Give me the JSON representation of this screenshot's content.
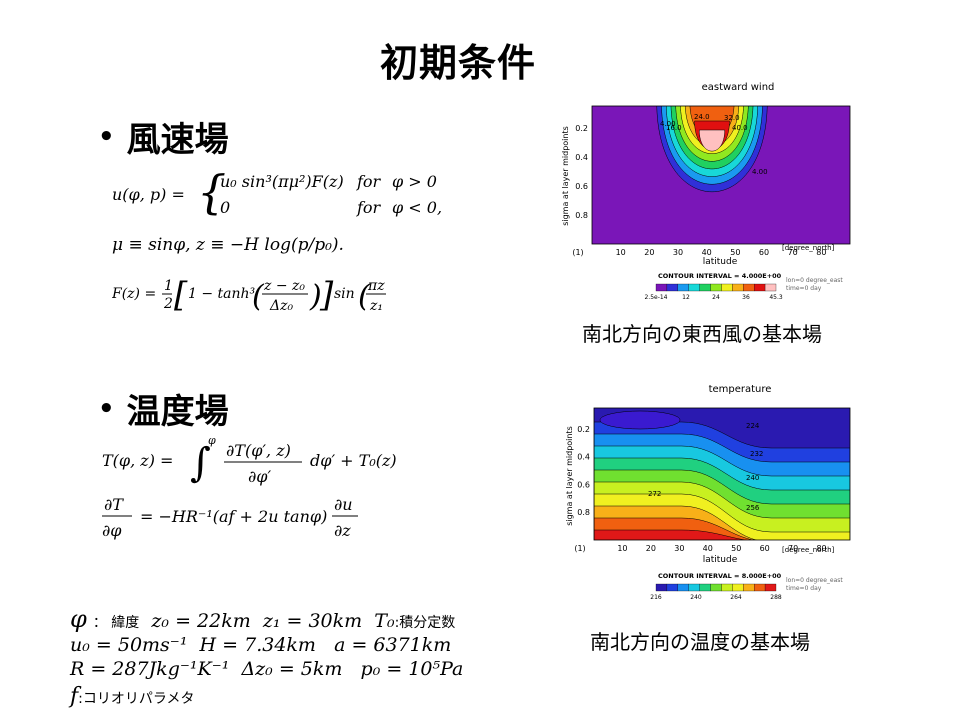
{
  "slide": {
    "title": "初期条件",
    "bullet_wind": "風速場",
    "bullet_temp": "温度場",
    "caption_wind": "南北方向の東西風の基本場",
    "caption_temp": "南北方向の温度の基本場"
  },
  "equations": {
    "wind": [
      "u(φ, p) = { u₀ sin³(πμ²)F(z)    for φ > 0",
      "             0                   for φ < 0,",
      "μ ≡ sinφ,  z ≡ −H log(p/p₀).",
      "F(z) = ½[1 − tanh³((z − z₀)/Δz₀)] sin(πz/z₁)"
    ],
    "temp": [
      "T(φ, z) = ∫^φ ∂T(φ′, z)/∂φ′ dφ′ + T₀(z)",
      "∂T/∂φ = −HR⁻¹(af + 2u tanφ) ∂u/∂z"
    ]
  },
  "params": {
    "line1": {
      "phi": "φ",
      "phi_label": "： 緯度",
      "z0": "z₀ = 22km",
      "z1": "z₁ = 30km",
      "T0": "T₀",
      "T0_label": ":積分定数"
    },
    "line2": {
      "u0": "u₀ = 50ms⁻¹",
      "H": "H = 7.34km",
      "a": "a = 6371km"
    },
    "line3": {
      "R": "R = 287Jkg⁻¹K⁻¹",
      "dz0": "Δz₀ = 5km",
      "p0": "p₀ = 10⁵Pa"
    },
    "line4": {
      "f": "f",
      "f_label": ":コリオリパラメタ"
    }
  },
  "chart_data": [
    {
      "type": "contour",
      "title": "eastward wind",
      "ylabel": "sigma at layer midpoints",
      "xlabel": "latitude",
      "x_ticks": [
        "(1)",
        "10",
        "20",
        "30",
        "40",
        "50",
        "60",
        "70",
        "80"
      ],
      "x_unit": "[degree_north]",
      "y_ticks": [
        "0.2",
        "0.4",
        "0.6",
        "0.8"
      ],
      "contour_labels": [
        "16.0",
        "24.0",
        "32.0",
        "40.0",
        "4.00",
        "4.00"
      ],
      "contour_interval": "CONTOUR INTERVAL = 4.000E+00",
      "meta_lines": [
        "lon=0 degree_east",
        "time=0 day"
      ],
      "colorbar_labels": [
        "2.5e-14",
        "12",
        "24",
        "36",
        "45.3"
      ],
      "colors": [
        "#7a16b8",
        "#3030d8",
        "#1a9af0",
        "#18d8d8",
        "#20d060",
        "#90e820",
        "#f0f020",
        "#f8b018",
        "#f06010",
        "#e01010",
        "#ffc0c0"
      ]
    },
    {
      "type": "contour",
      "title": "temperature",
      "ylabel": "sigma at layer midpoints",
      "xlabel": "latitude",
      "x_ticks": [
        "(1)",
        "10",
        "20",
        "30",
        "40",
        "50",
        "60",
        "70",
        "80"
      ],
      "x_unit": "[degree_north]",
      "y_ticks": [
        "0.2",
        "0.4",
        "0.6",
        "0.8"
      ],
      "contour_labels": [
        "224",
        "232",
        "240",
        "256",
        "272"
      ],
      "contour_interval": "CONTOUR INTERVAL = 8.000E+00",
      "meta_lines": [
        "lon=0 degree_east",
        "time=0 day"
      ],
      "colorbar_labels": [
        "216",
        "240",
        "264",
        "288"
      ],
      "colors": [
        "#2a1ab0",
        "#2040e0",
        "#1890f0",
        "#18c8e0",
        "#20d080",
        "#70e030",
        "#c8f020",
        "#f0f020",
        "#f8b018",
        "#f06010",
        "#e01818"
      ]
    }
  ]
}
